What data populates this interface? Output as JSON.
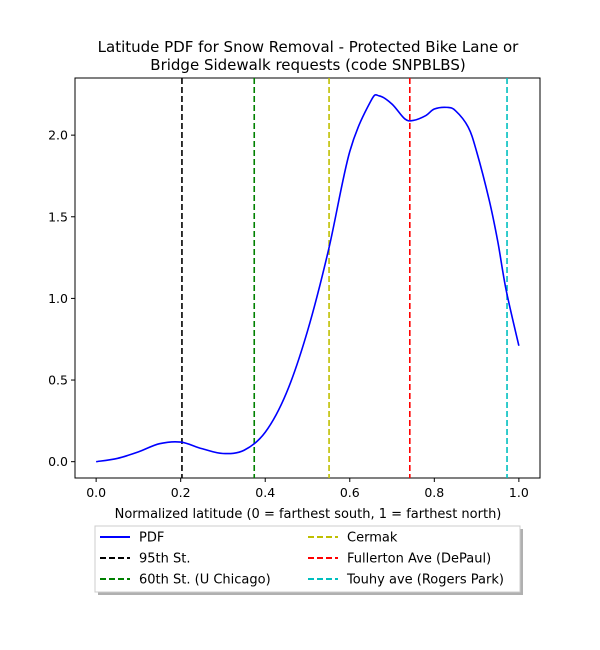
{
  "chart_data": {
    "type": "line",
    "title_lines": [
      "Latitude PDF for Snow Removal - Protected Bike Lane or",
      "Bridge Sidewalk  requests (code SNPBLBS)"
    ],
    "xlabel": "Normalized latitude (0 = farthest south, 1 = farthest north)",
    "ylabel": "",
    "xlim": [
      -0.05,
      1.05
    ],
    "ylim": [
      -0.1,
      2.35
    ],
    "xticks": [
      0.0,
      0.2,
      0.4,
      0.6,
      0.8,
      1.0
    ],
    "xtick_labels": [
      "0.0",
      "0.2",
      "0.4",
      "0.6",
      "0.8",
      "1.0"
    ],
    "yticks": [
      0.0,
      0.5,
      1.0,
      1.5,
      2.0
    ],
    "ytick_labels": [
      "0.0",
      "0.5",
      "1.0",
      "1.5",
      "2.0"
    ],
    "grid": false,
    "legend_position": "below plot",
    "series": [
      {
        "name": "PDF",
        "color": "#0000ff",
        "style": "solid",
        "x": [
          0.0,
          0.05,
          0.1,
          0.15,
          0.2,
          0.25,
          0.3,
          0.35,
          0.4,
          0.45,
          0.5,
          0.55,
          0.6,
          0.65,
          0.67,
          0.7,
          0.73,
          0.75,
          0.78,
          0.8,
          0.83,
          0.85,
          0.88,
          0.9,
          0.93,
          0.95,
          0.97,
          1.0
        ],
        "y": [
          0.0,
          0.02,
          0.06,
          0.11,
          0.12,
          0.08,
          0.05,
          0.07,
          0.18,
          0.42,
          0.8,
          1.3,
          1.9,
          2.21,
          2.24,
          2.19,
          2.1,
          2.09,
          2.12,
          2.16,
          2.17,
          2.15,
          2.05,
          1.9,
          1.6,
          1.35,
          1.05,
          0.71
        ]
      }
    ],
    "vlines": [
      {
        "name": "95th St.",
        "x": 0.203,
        "color": "#000000"
      },
      {
        "name": "60th St. (U Chicago)",
        "x": 0.374,
        "color": "#008000"
      },
      {
        "name": "Cermak",
        "x": 0.551,
        "color": "#bfbf00"
      },
      {
        "name": "Fullerton Ave (DePaul)",
        "x": 0.742,
        "color": "#ff0000"
      },
      {
        "name": "Touhy ave (Rogers Park)",
        "x": 0.972,
        "color": "#00bfbf"
      }
    ]
  }
}
